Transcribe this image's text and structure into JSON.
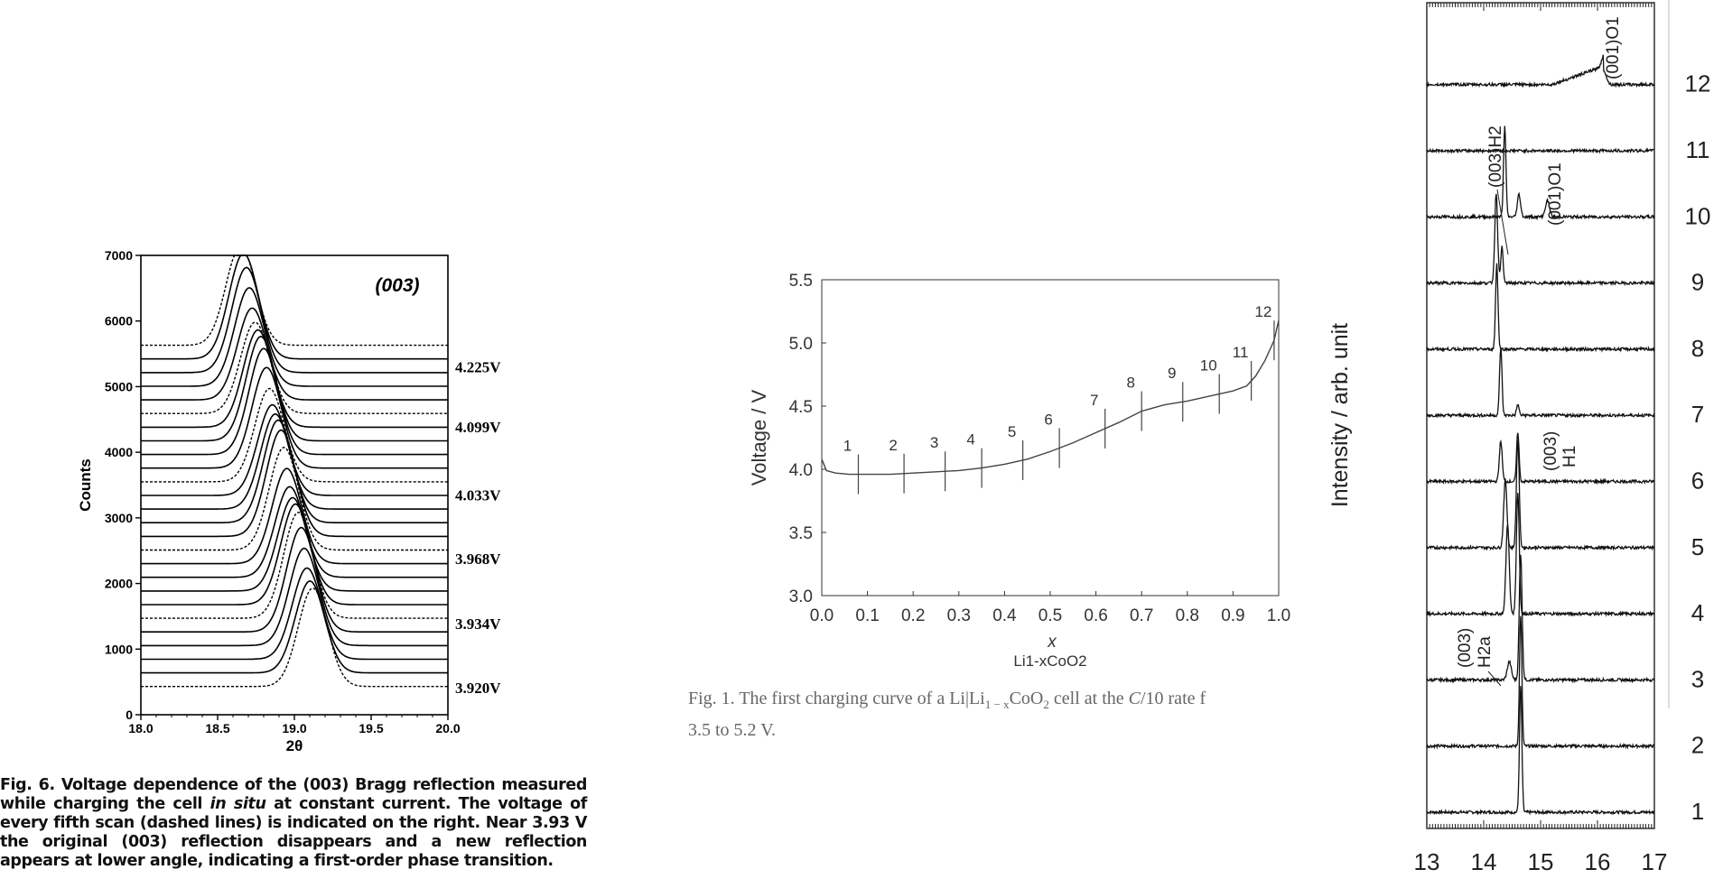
{
  "chart_data": [
    {
      "type": "line",
      "panel_label": "(003)",
      "xlabel": "2θ",
      "ylabel": "Counts",
      "xlim": [
        18.0,
        20.0
      ],
      "ylim": [
        0,
        7000
      ],
      "xticks": [
        "18.0",
        "18.5",
        "19.0",
        "19.5",
        "20.0"
      ],
      "yticks": [
        "0",
        "1000",
        "2000",
        "3000",
        "4000",
        "5000",
        "6000",
        "7000"
      ],
      "series_count": 26,
      "baseline_first": 430,
      "baseline_step": 208,
      "peak_height": 1500,
      "peak_center_start": 19.12,
      "peak_center_end": 18.65,
      "voltage_labels": [
        {
          "label": "4.225V",
          "y": 5300
        },
        {
          "label": "4.099V",
          "y": 4390
        },
        {
          "label": "4.033V",
          "y": 3350
        },
        {
          "label": "3.968V",
          "y": 2380
        },
        {
          "label": "3.934V",
          "y": 1390
        },
        {
          "label": "3.920V",
          "y": 410
        }
      ],
      "caption": {
        "prefix": "Fig. 6. Voltage dependence of the (003) Bragg reflection measured while charging the cell ",
        "italic": "in situ",
        "suffix": " at constant current. The voltage of every fifth scan (dashed lines) is indicated on the right. Near 3.93 V the original (003) reflection disappears and a new reflection appears at lower angle, indicating a first-order phase transition."
      }
    },
    {
      "type": "line",
      "xlabel": "x",
      "xlabel2": "Li1-xCoO2",
      "ylabel": "Voltage / V",
      "xlim": [
        0.0,
        1.0
      ],
      "ylim": [
        3.0,
        5.5
      ],
      "xticks": [
        "0.0",
        "0.1",
        "0.2",
        "0.3",
        "0.4",
        "0.5",
        "0.6",
        "0.7",
        "0.8",
        "0.9",
        "1.0"
      ],
      "yticks": [
        "3.0",
        "3.5",
        "4.0",
        "4.5",
        "5.0",
        "5.5"
      ],
      "x": [
        0.0,
        0.01,
        0.03,
        0.06,
        0.1,
        0.15,
        0.2,
        0.25,
        0.3,
        0.35,
        0.4,
        0.45,
        0.5,
        0.55,
        0.6,
        0.65,
        0.7,
        0.75,
        0.8,
        0.85,
        0.9,
        0.93,
        0.95,
        0.97,
        0.99,
        1.0
      ],
      "y": [
        4.08,
        3.99,
        3.97,
        3.96,
        3.96,
        3.96,
        3.97,
        3.98,
        3.99,
        4.01,
        4.04,
        4.08,
        4.14,
        4.21,
        4.29,
        4.37,
        4.46,
        4.51,
        4.54,
        4.58,
        4.62,
        4.66,
        4.74,
        4.86,
        5.02,
        5.18
      ],
      "markers": [
        {
          "label": "1",
          "x": 0.08
        },
        {
          "label": "2",
          "x": 0.18
        },
        {
          "label": "3",
          "x": 0.27
        },
        {
          "label": "4",
          "x": 0.35
        },
        {
          "label": "5",
          "x": 0.44
        },
        {
          "label": "6",
          "x": 0.52
        },
        {
          "label": "7",
          "x": 0.62
        },
        {
          "label": "8",
          "x": 0.7
        },
        {
          "label": "9",
          "x": 0.79
        },
        {
          "label": "10",
          "x": 0.87
        },
        {
          "label": "11",
          "x": 0.94
        },
        {
          "label": "12",
          "x": 0.99
        }
      ],
      "caption": {
        "part1": "Fig. 1. The first charging curve of a Li|Li",
        "part1_sub": "1 − x",
        "part2": "CoO",
        "part2_sub": "2",
        "part3": " cell at the ",
        "part3_italic": "C",
        "part4": "/10 rate f",
        "line2": "3.5 to 5.2 V."
      }
    },
    {
      "type": "line",
      "ylabel": "Intensity / arb. unit",
      "xlim": [
        13,
        17
      ],
      "xticks": [
        "13",
        "14",
        "15",
        "16",
        "17"
      ],
      "scan_labels": [
        "1",
        "2",
        "3",
        "4",
        "5",
        "6",
        "7",
        "8",
        "9",
        "10",
        "11",
        "12"
      ],
      "scans": [
        {
          "label": "1",
          "peaks": [
            [
              14.65,
              140,
              0.03
            ]
          ]
        },
        {
          "label": "2",
          "peaks": [
            [
              14.65,
              145,
              0.03
            ]
          ]
        },
        {
          "label": "3",
          "peaks": [
            [
              14.65,
              140,
              0.035
            ],
            [
              14.45,
              20,
              0.05
            ]
          ]
        },
        {
          "label": "4",
          "peaks": [
            [
              14.6,
              135,
              0.035
            ],
            [
              14.42,
              100,
              0.04
            ]
          ]
        },
        {
          "label": "5",
          "peaks": [
            [
              14.6,
              120,
              0.035
            ],
            [
              14.38,
              75,
              0.04
            ]
          ]
        },
        {
          "label": "6",
          "peaks": [
            [
              14.6,
              55,
              0.03
            ],
            [
              14.3,
              45,
              0.035
            ]
          ]
        },
        {
          "label": "7",
          "peaks": [
            [
              14.3,
              75,
              0.03
            ],
            [
              14.6,
              12,
              0.03
            ]
          ]
        },
        {
          "label": "8",
          "peaks": [
            [
              14.23,
              95,
              0.03
            ]
          ]
        },
        {
          "label": "9",
          "peaks": [
            [
              14.22,
              100,
              0.035
            ],
            [
              14.32,
              40,
              0.03
            ]
          ]
        },
        {
          "label": "10",
          "peaks": [
            [
              14.37,
              100,
              0.03
            ],
            [
              14.62,
              25,
              0.04
            ],
            [
              15.12,
              18,
              0.05
            ]
          ]
        },
        {
          "label": "11",
          "peaks": []
        },
        {
          "label": "12",
          "peaks": [
            [
              16.12,
              14,
              0.06
            ]
          ],
          "ramp": [
            15.2,
            16.1,
            20
          ]
        }
      ],
      "annotations": [
        {
          "text": "(001)O1",
          "scan": "12"
        },
        {
          "text": "(003)H2",
          "scan": "10"
        },
        {
          "text": "(001)O1",
          "scan": "10"
        },
        {
          "text": "(003)",
          "scan": "6"
        },
        {
          "text": "H1",
          "scan": "6"
        },
        {
          "text": "(003)",
          "scan": "3"
        },
        {
          "text": "H2a",
          "scan": "3"
        }
      ]
    }
  ]
}
